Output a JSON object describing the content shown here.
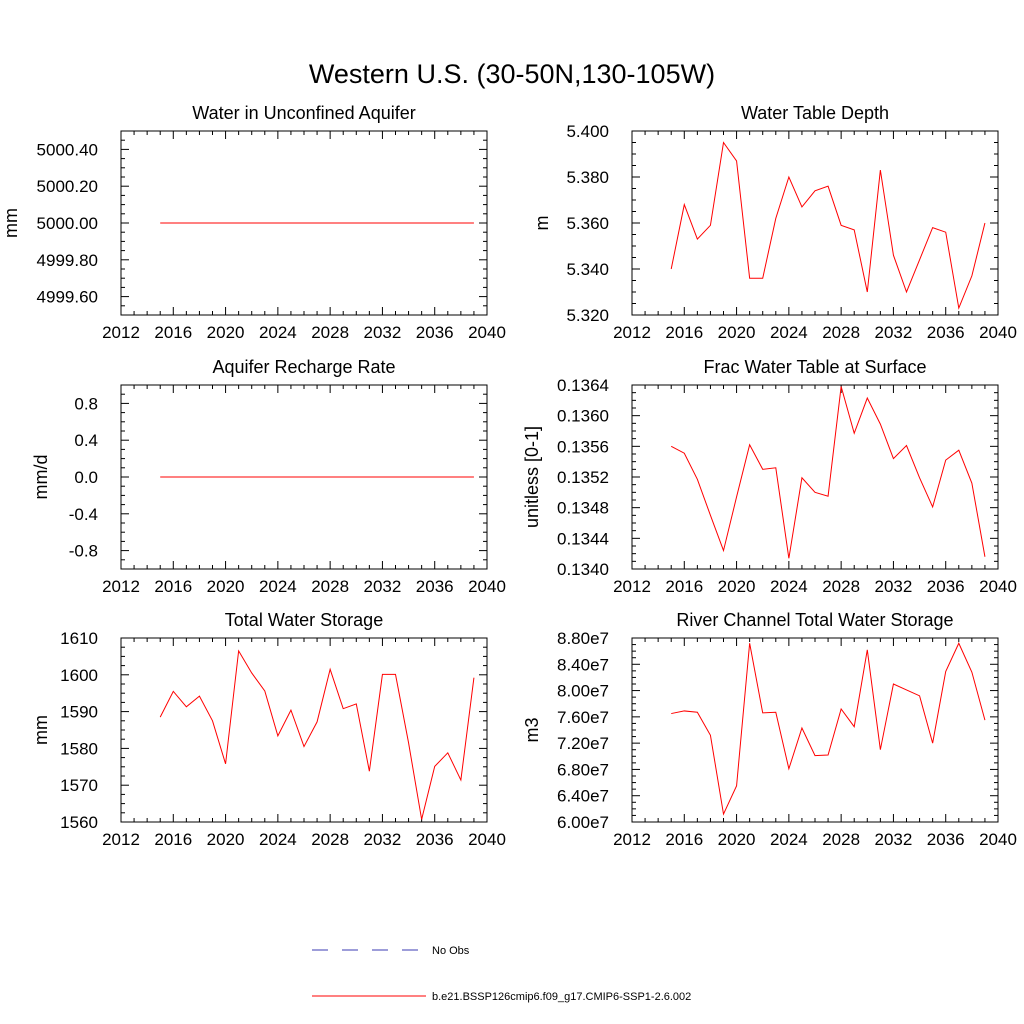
{
  "title": "Western U.S. (30-50N,130-105W)",
  "colors": {
    "model": "#ff0000",
    "obs": "#3b3bb3",
    "axis": "#000000"
  },
  "legend": {
    "items": [
      {
        "label": "No Obs",
        "style": "dashed",
        "color": "#3b3bb3"
      },
      {
        "label": "b.e21.BSSP126cmip6.f09_g17.CMIP6-SSP1-2.6.002",
        "style": "solid",
        "color": "#ff0000"
      }
    ]
  },
  "chart_data": [
    {
      "type": "line",
      "title": "Water in Unconfined Aquifer",
      "ylabel": "mm",
      "xlim": [
        2012,
        2040
      ],
      "ylim": [
        4999.5,
        5000.5
      ],
      "xticks": [
        2012,
        2016,
        2020,
        2024,
        2028,
        2032,
        2036,
        2040
      ],
      "yticks": [
        4999.6,
        4999.8,
        5000.0,
        5000.2,
        5000.4
      ],
      "ytick_labels": [
        "4999.60",
        "4999.80",
        "5000.00",
        "5000.20",
        "5000.40"
      ],
      "x": [
        2015,
        2016,
        2017,
        2018,
        2019,
        2020,
        2021,
        2022,
        2023,
        2024,
        2025,
        2026,
        2027,
        2028,
        2029,
        2030,
        2031,
        2032,
        2033,
        2034,
        2035,
        2036,
        2037,
        2038,
        2039
      ],
      "series": [
        {
          "values": [
            5000.0,
            5000.0,
            5000.0,
            5000.0,
            5000.0,
            5000.0,
            5000.0,
            5000.0,
            5000.0,
            5000.0,
            5000.0,
            5000.0,
            5000.0,
            5000.0,
            5000.0,
            5000.0,
            5000.0,
            5000.0,
            5000.0,
            5000.0,
            5000.0,
            5000.0,
            5000.0,
            5000.0,
            5000.0
          ]
        }
      ]
    },
    {
      "type": "line",
      "title": "Water Table Depth",
      "ylabel": "m",
      "xlim": [
        2012,
        2040
      ],
      "ylim": [
        5.32,
        5.4
      ],
      "xticks": [
        2012,
        2016,
        2020,
        2024,
        2028,
        2032,
        2036,
        2040
      ],
      "yticks": [
        5.32,
        5.34,
        5.36,
        5.38,
        5.4
      ],
      "ytick_labels": [
        "5.320",
        "5.340",
        "5.360",
        "5.380",
        "5.400"
      ],
      "x": [
        2015,
        2016,
        2017,
        2018,
        2019,
        2020,
        2021,
        2022,
        2023,
        2024,
        2025,
        2026,
        2027,
        2028,
        2029,
        2030,
        2031,
        2032,
        2033,
        2034,
        2035,
        2036,
        2037,
        2038,
        2039
      ],
      "series": [
        {
          "values": [
            5.34,
            5.368,
            5.353,
            5.359,
            5.395,
            5.387,
            5.336,
            5.336,
            5.362,
            5.38,
            5.367,
            5.374,
            5.376,
            5.359,
            5.357,
            5.33,
            5.383,
            5.346,
            5.33,
            5.344,
            5.358,
            5.356,
            5.323,
            5.337,
            5.36
          ]
        }
      ]
    },
    {
      "type": "line",
      "title": "Aquifer Recharge Rate",
      "ylabel": "mm/d",
      "xlim": [
        2012,
        2040
      ],
      "ylim": [
        -1.0,
        1.0
      ],
      "xticks": [
        2012,
        2016,
        2020,
        2024,
        2028,
        2032,
        2036,
        2040
      ],
      "yticks": [
        -0.8,
        -0.4,
        0.0,
        0.4,
        0.8
      ],
      "ytick_labels": [
        "-0.8",
        "-0.4",
        "0.0",
        "0.4",
        "0.8"
      ],
      "x": [
        2015,
        2016,
        2017,
        2018,
        2019,
        2020,
        2021,
        2022,
        2023,
        2024,
        2025,
        2026,
        2027,
        2028,
        2029,
        2030,
        2031,
        2032,
        2033,
        2034,
        2035,
        2036,
        2037,
        2038,
        2039
      ],
      "series": [
        {
          "values": [
            0.0,
            0.0,
            0.0,
            0.0,
            0.0,
            0.0,
            0.0,
            0.0,
            0.0,
            0.0,
            0.0,
            0.0,
            0.0,
            0.0,
            0.0,
            0.0,
            0.0,
            0.0,
            0.0,
            0.0,
            0.0,
            0.0,
            0.0,
            0.0,
            0.0
          ]
        }
      ]
    },
    {
      "type": "line",
      "title": "Frac Water Table at Surface",
      "ylabel": "unitless [0-1]",
      "xlim": [
        2012,
        2040
      ],
      "ylim": [
        0.134,
        0.1364
      ],
      "xticks": [
        2012,
        2016,
        2020,
        2024,
        2028,
        2032,
        2036,
        2040
      ],
      "yticks": [
        0.134,
        0.1344,
        0.1348,
        0.1352,
        0.1356,
        0.136,
        0.1364
      ],
      "ytick_labels": [
        "0.1340",
        "0.1344",
        "0.1348",
        "0.1352",
        "0.1356",
        "0.1360",
        "0.1364"
      ],
      "x": [
        2015,
        2016,
        2017,
        2018,
        2019,
        2020,
        2021,
        2022,
        2023,
        2024,
        2025,
        2026,
        2027,
        2028,
        2029,
        2030,
        2031,
        2032,
        2033,
        2034,
        2035,
        2036,
        2037,
        2038,
        2039
      ],
      "series": [
        {
          "values": [
            0.1356,
            0.13551,
            0.13517,
            0.1347,
            0.13424,
            0.13494,
            0.13562,
            0.1353,
            0.13532,
            0.13414,
            0.13519,
            0.135,
            0.13495,
            0.13638,
            0.13577,
            0.13623,
            0.13589,
            0.13544,
            0.13561,
            0.13519,
            0.13481,
            0.13542,
            0.13555,
            0.13512,
            0.13416
          ]
        }
      ]
    },
    {
      "type": "line",
      "title": "Total Water Storage",
      "ylabel": "mm",
      "xlim": [
        2012,
        2040
      ],
      "ylim": [
        1560,
        1610
      ],
      "xticks": [
        2012,
        2016,
        2020,
        2024,
        2028,
        2032,
        2036,
        2040
      ],
      "yticks": [
        1560,
        1570,
        1580,
        1590,
        1600,
        1610
      ],
      "ytick_labels": [
        "1560",
        "1570",
        "1580",
        "1590",
        "1600",
        "1610"
      ],
      "x": [
        2015,
        2016,
        2017,
        2018,
        2019,
        2020,
        2021,
        2022,
        2023,
        2024,
        2025,
        2026,
        2027,
        2028,
        2029,
        2030,
        2031,
        2032,
        2033,
        2034,
        2035,
        2036,
        2037,
        2038,
        2039
      ],
      "series": [
        {
          "values": [
            1588.5,
            1595.5,
            1591.3,
            1594.2,
            1587.5,
            1575.8,
            1606.5,
            1600.5,
            1595.6,
            1583.4,
            1590.4,
            1580.5,
            1587.2,
            1601.5,
            1590.8,
            1592.1,
            1573.8,
            1600.1,
            1600.1,
            1581.5,
            1560.7,
            1575.1,
            1578.8,
            1571.4,
            1599.2
          ]
        }
      ]
    },
    {
      "type": "line",
      "title": "River Channel Total Water Storage",
      "ylabel": "m3",
      "xlim": [
        2012,
        2040
      ],
      "ylim": [
        60000000,
        88000000
      ],
      "xticks": [
        2012,
        2016,
        2020,
        2024,
        2028,
        2032,
        2036,
        2040
      ],
      "yticks": [
        60000000,
        64000000,
        68000000,
        72000000,
        76000000,
        80000000,
        84000000,
        88000000
      ],
      "ytick_labels": [
        "6.00e7",
        "6.40e7",
        "6.80e7",
        "7.20e7",
        "7.60e7",
        "8.00e7",
        "8.40e7",
        "8.80e7"
      ],
      "x": [
        2015,
        2016,
        2017,
        2018,
        2019,
        2020,
        2021,
        2022,
        2023,
        2024,
        2025,
        2026,
        2027,
        2028,
        2029,
        2030,
        2031,
        2032,
        2033,
        2034,
        2035,
        2036,
        2037,
        2038,
        2039
      ],
      "series": [
        {
          "values": [
            76500000,
            76900000,
            76700000,
            73200000,
            61200000,
            65500000,
            87200000,
            76600000,
            76700000,
            68100000,
            74300000,
            70100000,
            70200000,
            77200000,
            74500000,
            86200000,
            71000000,
            81000000,
            80100000,
            79200000,
            72000000,
            82900000,
            87200000,
            82800000,
            75500000
          ]
        }
      ]
    }
  ]
}
